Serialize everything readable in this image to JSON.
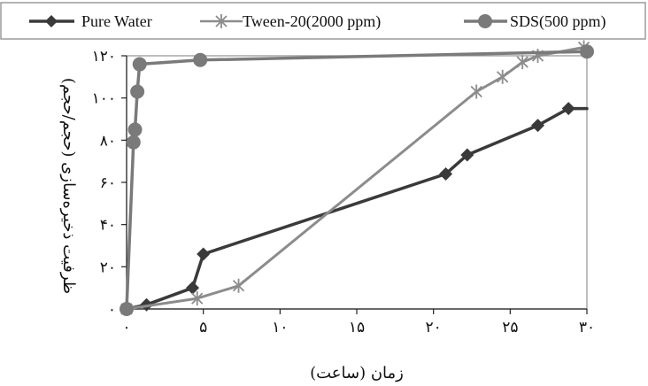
{
  "chart_data": {
    "type": "line",
    "title": "",
    "xlabel": "زمان (ساعت)",
    "ylabel": "ظرفیت ذخیره‌سازی (حجم/حجم)",
    "xlim": [
      0,
      30
    ],
    "ylim": [
      0,
      120
    ],
    "x_tick_labels": [
      "۰",
      "۵",
      "۱۰",
      "۱۵",
      "۲۰",
      "۲۵",
      "۳۰"
    ],
    "y_tick_labels": [
      "۰",
      "۲۰",
      "۴۰",
      "۶۰",
      "۸۰",
      "۱۰۰",
      "۱۲۰"
    ],
    "grid": false,
    "legend_position": "top",
    "series": [
      {
        "name": "Pure Water",
        "color": "#3a3a3a",
        "marker": "diamond",
        "x": [
          0,
          1.3,
          4.3,
          5.0,
          20.8,
          22.2,
          26.8,
          28.8,
          30
        ],
        "y": [
          0,
          2,
          10,
          26,
          64,
          73,
          87,
          95,
          95
        ]
      },
      {
        "name": "Tween-20(2000 ppm)",
        "color": "#8c8c8c",
        "marker": "star",
        "x": [
          0,
          4.6,
          7.3,
          22.8,
          24.5,
          25.8,
          26.8,
          29.8
        ],
        "y": [
          0,
          5,
          11,
          103,
          110,
          117,
          120,
          124
        ]
      },
      {
        "name": "SDS(500 ppm)",
        "color": "#7a7a7a",
        "marker": "circle",
        "x": [
          0,
          0.45,
          0.55,
          0.7,
          0.85,
          4.8,
          30
        ],
        "y": [
          0,
          79,
          85,
          103,
          116,
          118,
          122
        ]
      }
    ]
  }
}
